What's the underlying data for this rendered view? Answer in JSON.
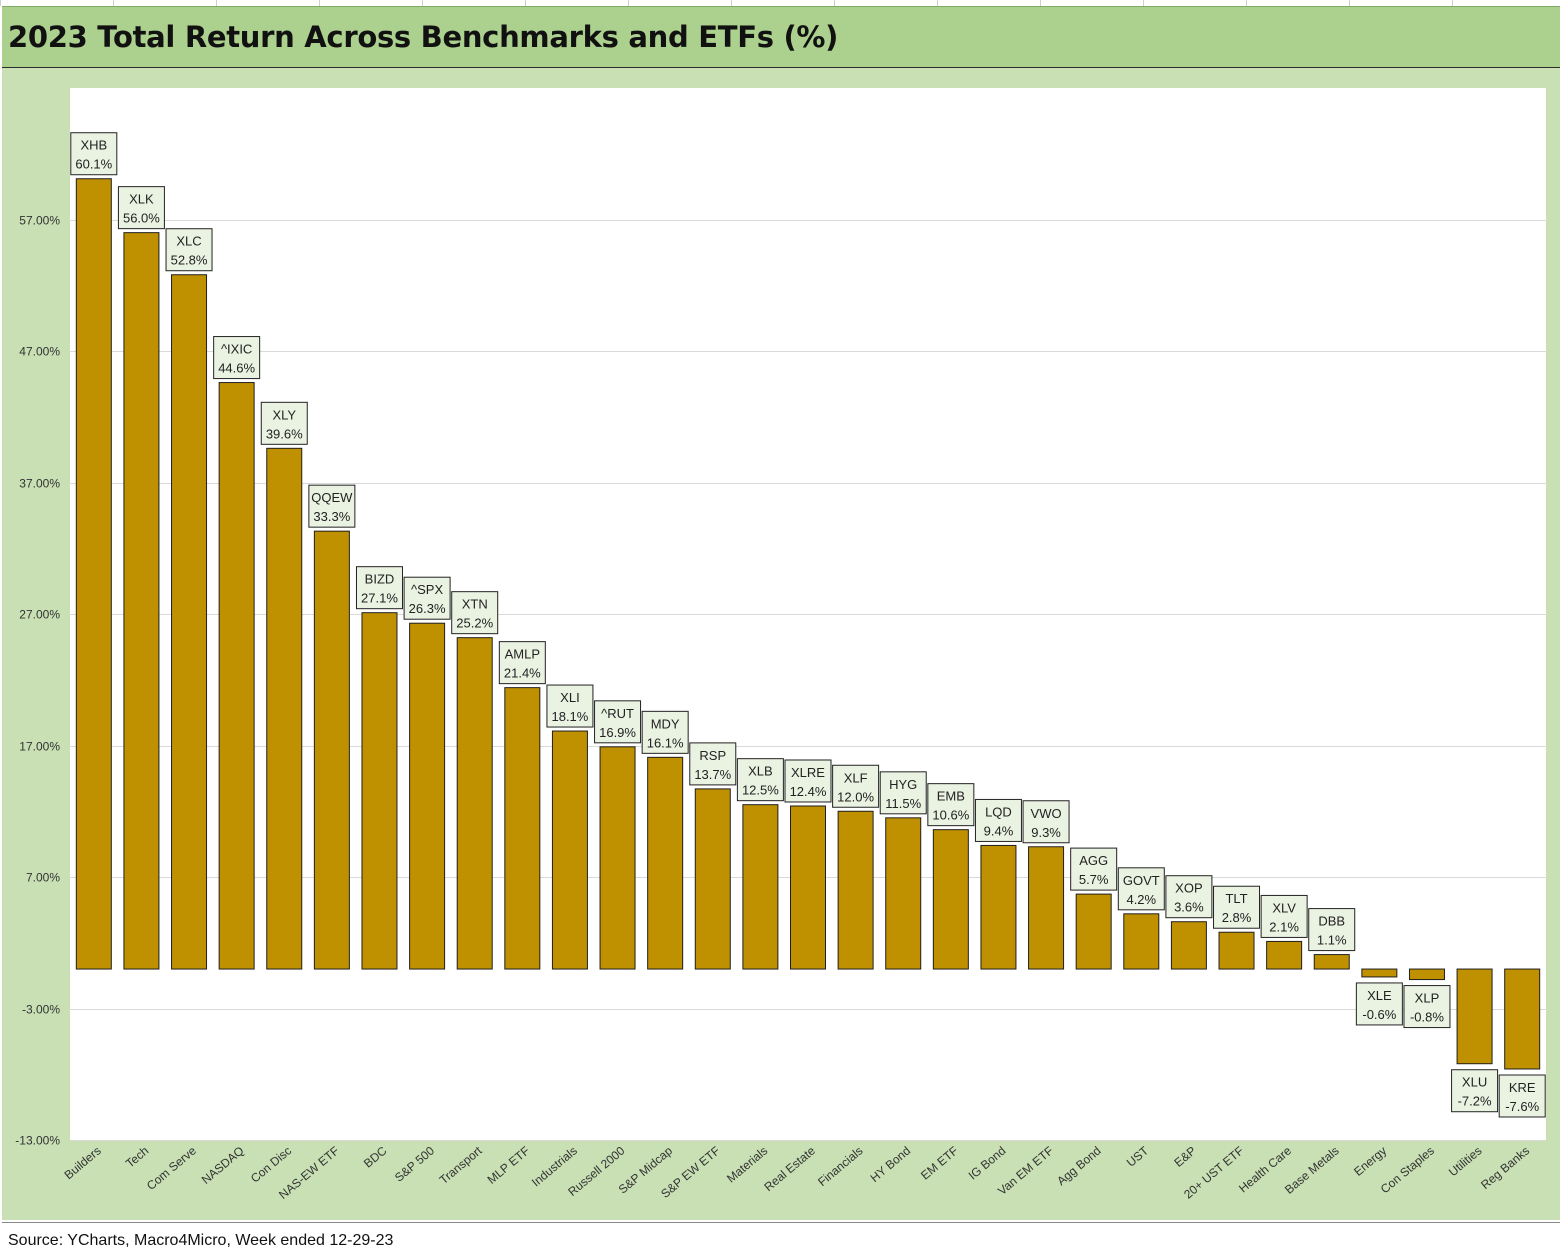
{
  "header": {
    "title": "2023 Total Return Across Benchmarks and ETFs (%)"
  },
  "footer": {
    "source": "Source: YCharts, Macro4Micro, Week ended 12-29-23"
  },
  "colors": {
    "bar_fill": "#bf9000",
    "title_band": "#acd08e",
    "chart_background": "#c8e0b4",
    "plot_background": "#ffffff",
    "label_box": "#eaf2e2",
    "gridline": "#d9d9d9"
  },
  "chart_data": {
    "type": "bar",
    "title": "2023 Total Return Across Benchmarks and ETFs (%)",
    "xlabel": "",
    "ylabel": "",
    "ylim": [
      -13,
      67
    ],
    "yticks": [
      57,
      47,
      37,
      27,
      17,
      7,
      -3,
      -13
    ],
    "ytick_labels": [
      "57.00%",
      "47.00%",
      "37.00%",
      "27.00%",
      "17.00%",
      "7.00%",
      "-3.00%",
      "-13.00%"
    ],
    "grid": "horizontal",
    "legend": "none",
    "categories": [
      "Builders",
      "Tech",
      "Com Serve",
      "NASDAQ",
      "Con Disc",
      "NAS-EW ETF",
      "BDC",
      "S&P 500",
      "Transport",
      "MLP ETF",
      "Industrials",
      "Russell 2000",
      "S&P Midcap",
      "S&P EW ETF",
      "Materials",
      "Real Estate",
      "Financials",
      "HY Bond",
      "EM ETF",
      "IG Bond",
      "Van EM ETF",
      "Agg Bond",
      "UST",
      "E&P",
      "20+ UST ETF",
      "Health Care",
      "Base Metals",
      "Energy",
      "Con Staples",
      "Utilities",
      "Reg Banks"
    ],
    "tickers": [
      "XHB",
      "XLK",
      "XLC",
      "^IXIC",
      "XLY",
      "QQEW",
      "BIZD",
      "^SPX",
      "XTN",
      "AMLP",
      "XLI",
      "^RUT",
      "MDY",
      "RSP",
      "XLB",
      "XLRE",
      "XLF",
      "HYG",
      "EMB",
      "LQD",
      "VWO",
      "AGG",
      "GOVT",
      "XOP",
      "TLT",
      "XLV",
      "DBB",
      "XLE",
      "XLP",
      "XLU",
      "KRE"
    ],
    "values": [
      60.1,
      56.0,
      52.8,
      44.6,
      39.6,
      33.3,
      27.1,
      26.3,
      25.2,
      21.4,
      18.1,
      16.9,
      16.1,
      13.7,
      12.5,
      12.4,
      12.0,
      11.5,
      10.6,
      9.4,
      9.3,
      5.7,
      4.2,
      3.6,
      2.8,
      2.1,
      1.1,
      -0.6,
      -0.8,
      -7.2,
      -7.6
    ],
    "data_labels": [
      "60.1%",
      "56.0%",
      "52.8%",
      "44.6%",
      "39.6%",
      "33.3%",
      "27.1%",
      "26.3%",
      "25.2%",
      "21.4%",
      "18.1%",
      "16.9%",
      "16.1%",
      "13.7%",
      "12.5%",
      "12.4%",
      "12.0%",
      "11.5%",
      "10.6%",
      "9.4%",
      "9.3%",
      "5.7%",
      "4.2%",
      "3.6%",
      "2.8%",
      "2.1%",
      "1.1%",
      "-0.6%",
      "-0.8%",
      "-7.2%",
      "-7.6%"
    ]
  }
}
